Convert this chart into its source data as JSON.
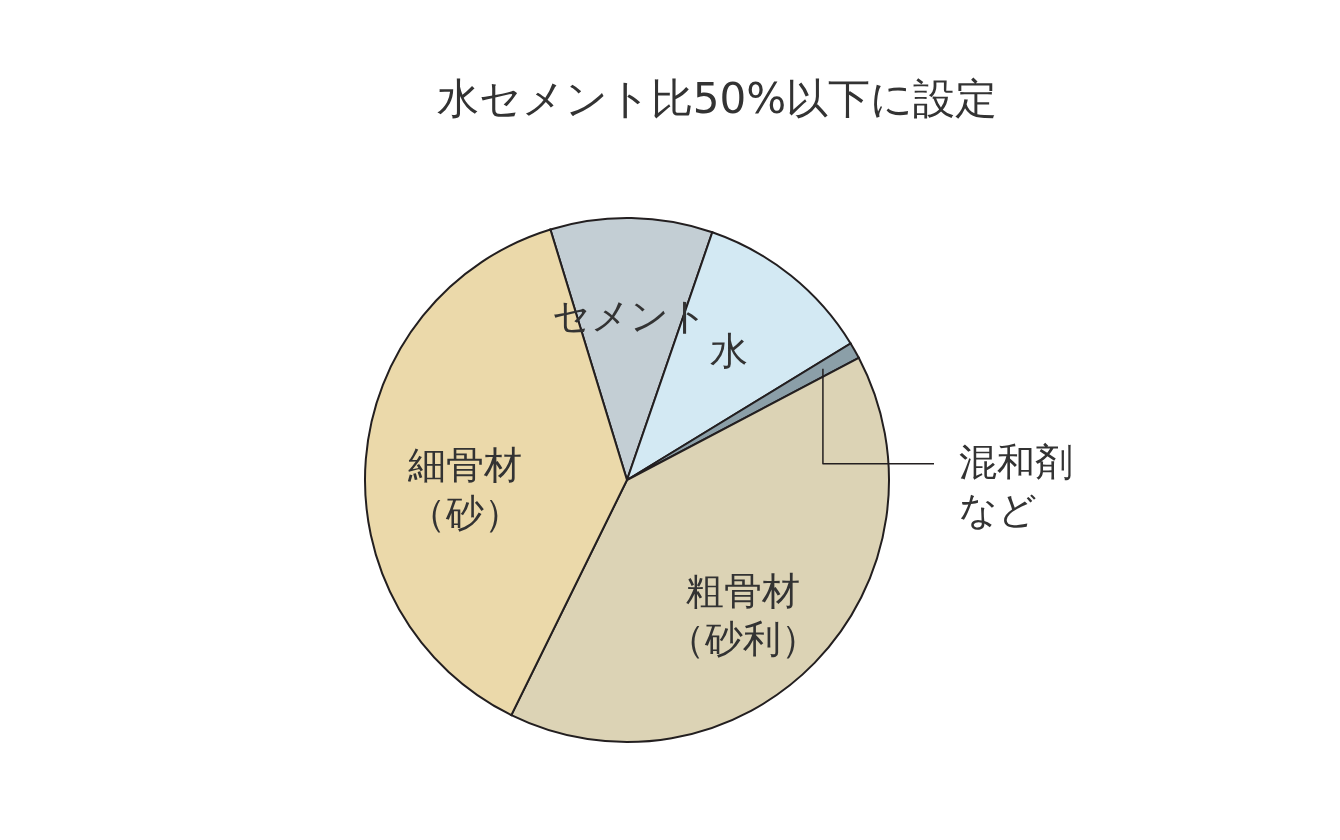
{
  "chart_data": {
    "type": "pie",
    "categories": [
      "セメント",
      "水",
      "混和剤など",
      "粗骨材（砂利）",
      "細骨材（砂）"
    ],
    "values": [
      10,
      11,
      1,
      40,
      38
    ],
    "colors": [
      "#c3ced4",
      "#d3e9f3",
      "#8b9fa8",
      "#dcd3b5",
      "#ebd9aa"
    ],
    "annotations": [
      "水セメント比50%以下に設定"
    ]
  }
}
